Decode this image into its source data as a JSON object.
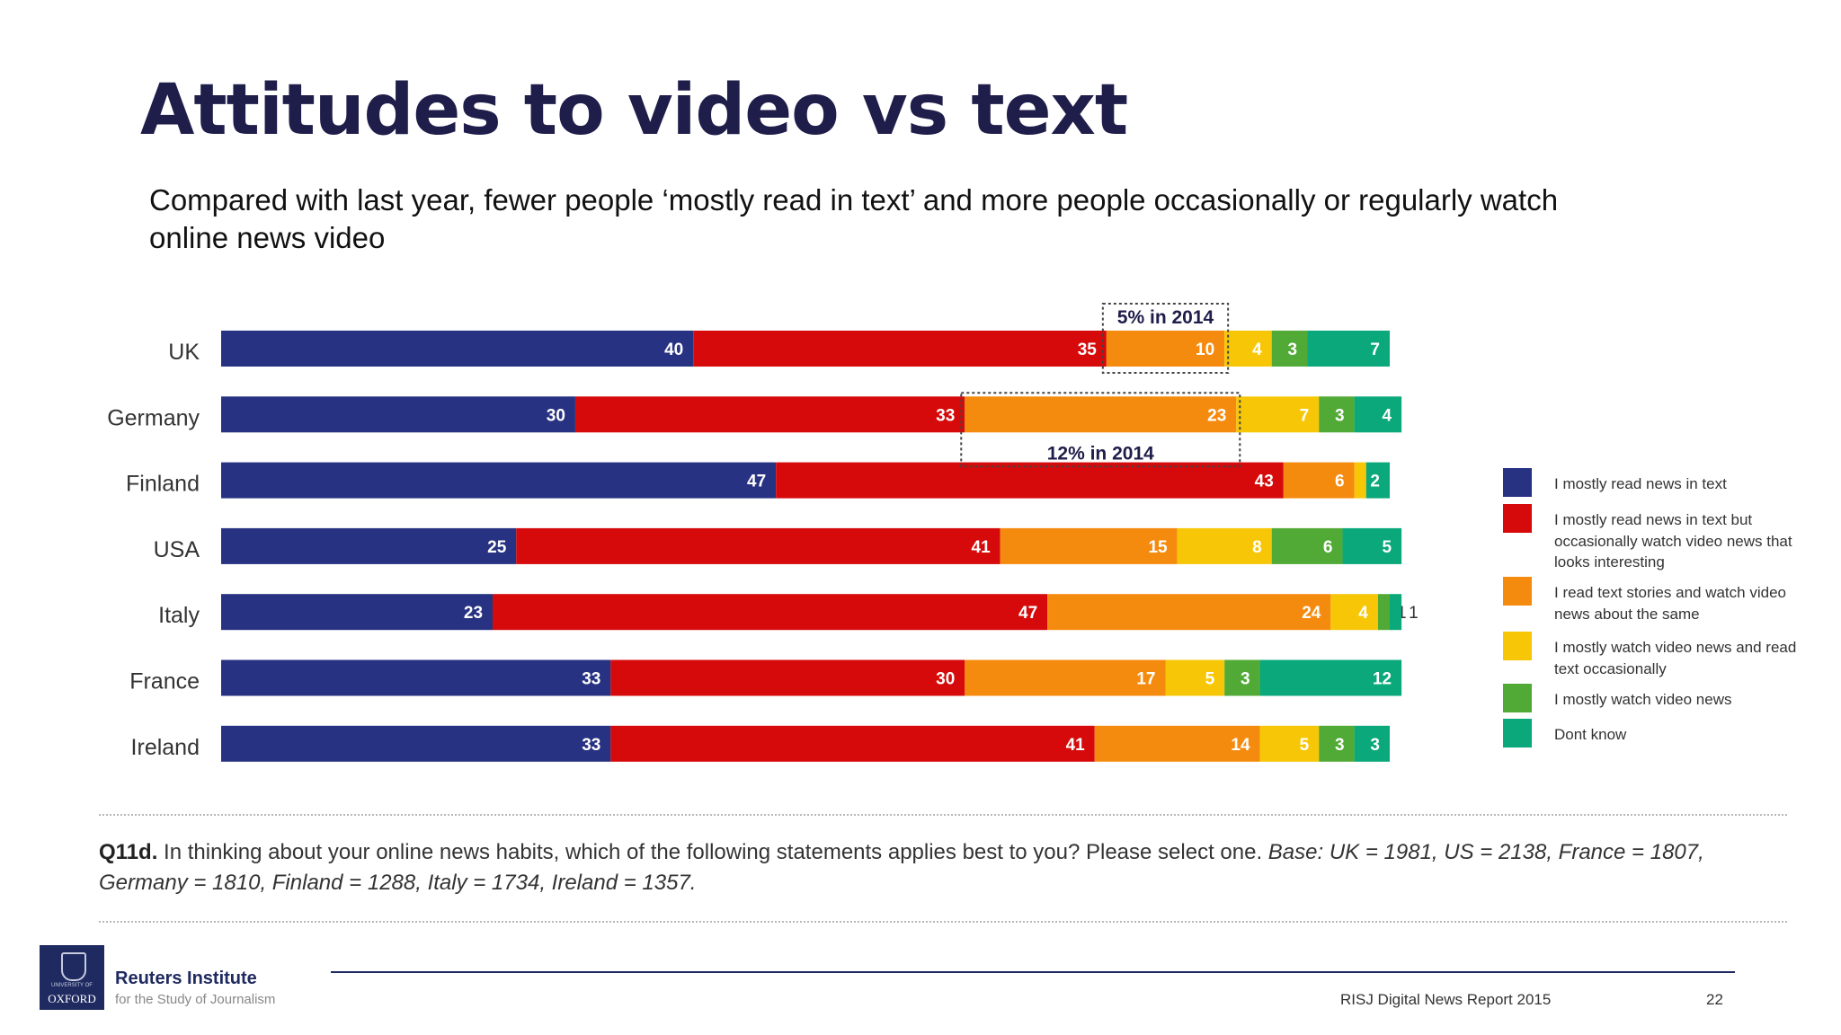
{
  "title": "Attitudes to video vs text",
  "subtitle": "Compared with last year, fewer people ‘mostly read in text’ and more people occasionally or regularly watch online news  video",
  "chart_data": {
    "type": "bar",
    "orientation": "horizontal",
    "stacked": true,
    "unit": "%",
    "xlim": [
      0,
      100
    ],
    "grid": false,
    "legend_position": "right",
    "categories": [
      "UK",
      "Germany",
      "Finland",
      "USA",
      "Italy",
      "France",
      "Ireland"
    ],
    "series": [
      {
        "name": "I mostly read news in text",
        "color": "#283282",
        "values": [
          40,
          30,
          47,
          25,
          23,
          33,
          33
        ]
      },
      {
        "name": "I mostly read news in text but occasionally watch video news that looks interesting",
        "color": "#d60a0a",
        "values": [
          35,
          33,
          43,
          41,
          47,
          30,
          41
        ]
      },
      {
        "name": "I read text stories and watch video news about the same",
        "color": "#f58b0e",
        "values": [
          10,
          23,
          6,
          15,
          24,
          17,
          14
        ]
      },
      {
        "name": "I mostly watch video news and read text occasionally",
        "color": "#f7c707",
        "values": [
          4,
          7,
          1,
          8,
          4,
          5,
          5
        ]
      },
      {
        "name": "I mostly watch video news",
        "color": "#52aa36",
        "values": [
          3,
          3,
          0,
          6,
          1,
          3,
          3
        ]
      },
      {
        "name": "Dont know",
        "color": "#0aa87a",
        "values": [
          7,
          4,
          2,
          5,
          1,
          12,
          3
        ]
      }
    ],
    "annotations": [
      {
        "text": "5% in 2014",
        "category": "UK",
        "series": "I read text stories and watch video news about the same"
      },
      {
        "text": "12% in 2014",
        "category": "Germany",
        "series": "I read text stories and watch video news about the same"
      }
    ]
  },
  "question": {
    "label": "Q11d.",
    "text": " In thinking about your online news habits, which of the following statements applies best to you? Please select one. ",
    "base": "Base: UK = 1981, US = 2138, France = 1807, Germany = 1810, Finland = 1288, Italy = 1734, Ireland = 1357."
  },
  "logo": {
    "small": "UNIVERSITY OF",
    "big": "OXFORD",
    "name": "Reuters Institute",
    "tagline": "for the Study of Journalism"
  },
  "footer": {
    "report": "RISJ Digital News Report 2015",
    "page": "22"
  }
}
